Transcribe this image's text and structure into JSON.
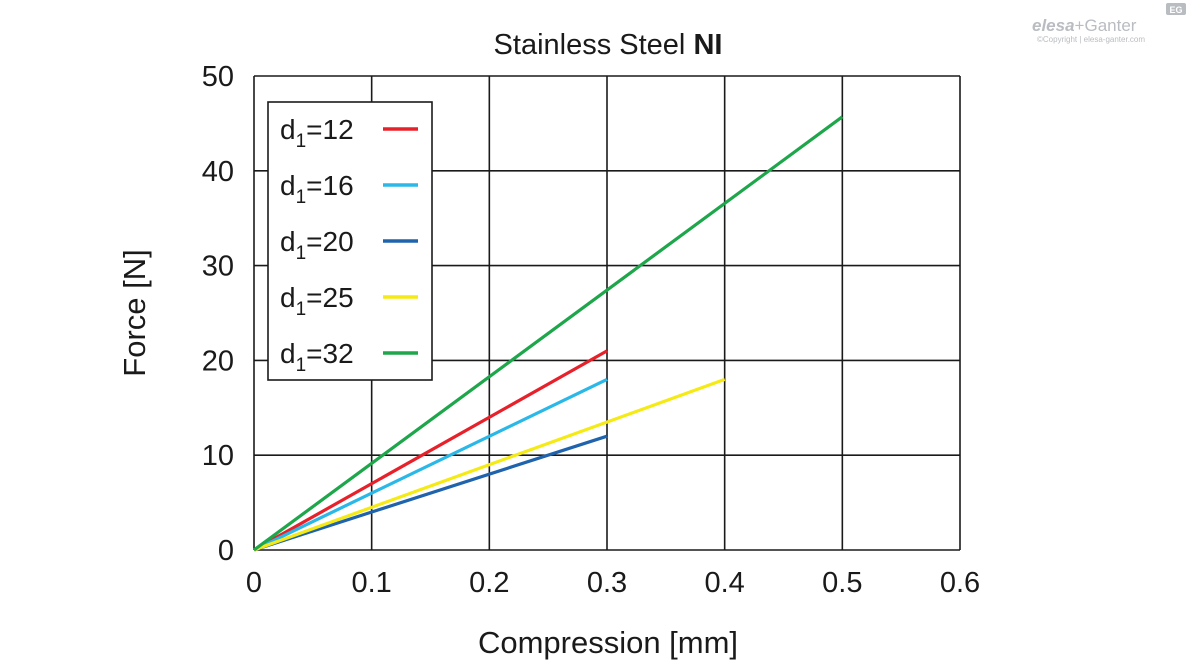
{
  "chart_data": {
    "type": "line",
    "title": "Stainless Steel",
    "title_bold": "NI",
    "xlabel": "Compression [mm]",
    "ylabel": "Force [N]",
    "xlim": [
      0,
      0.6
    ],
    "ylim": [
      0,
      50
    ],
    "x_ticks": [
      "0",
      "0.1",
      "0.2",
      "0.3",
      "0.4",
      "0.5",
      "0.6"
    ],
    "y_ticks": [
      "0",
      "10",
      "20",
      "30",
      "40",
      "50"
    ],
    "grid": true,
    "legend_position": "top-left",
    "series": [
      {
        "name": "d1=12",
        "label_base": "d",
        "label_sub": "1",
        "label_rest": "=12",
        "color": "#e8202a",
        "points": [
          [
            0,
            0
          ],
          [
            0.3,
            21
          ]
        ]
      },
      {
        "name": "d1=16",
        "label_base": "d",
        "label_sub": "1",
        "label_rest": "=16",
        "color": "#29b8e8",
        "points": [
          [
            0,
            0
          ],
          [
            0.3,
            18
          ]
        ]
      },
      {
        "name": "d1=20",
        "label_base": "d",
        "label_sub": "1",
        "label_rest": "=20",
        "color": "#1f63ad",
        "points": [
          [
            0,
            0
          ],
          [
            0.3,
            12
          ]
        ]
      },
      {
        "name": "d1=25",
        "label_base": "d",
        "label_sub": "1",
        "label_rest": "=25",
        "color": "#f5ea14",
        "points": [
          [
            0,
            0
          ],
          [
            0.4,
            18
          ]
        ]
      },
      {
        "name": "d1=32",
        "label_base": "d",
        "label_sub": "1",
        "label_rest": "=32",
        "color": "#1ea64b",
        "points": [
          [
            0,
            0
          ],
          [
            0.5,
            45.7
          ]
        ]
      }
    ]
  },
  "watermark": {
    "brand_left": "elesa",
    "brand_plus": "+",
    "brand_right": "Ganter",
    "badge": "EG",
    "copyright": "©Copyright | elesa-ganter.com"
  }
}
